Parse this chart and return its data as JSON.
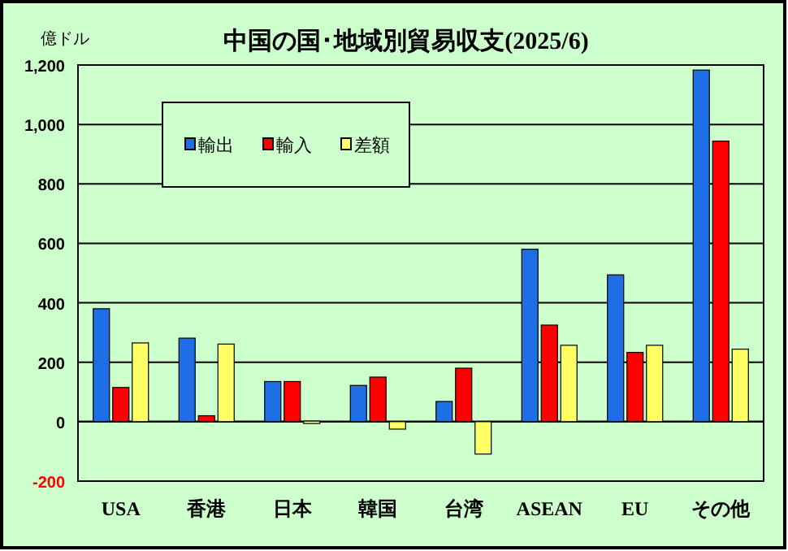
{
  "chart_data": {
    "type": "bar",
    "title": "中国の国･地域別貿易収支(2025/6)",
    "ylabel": "億ドル",
    "categories": [
      "USA",
      "香港",
      "日本",
      "韓国",
      "台湾",
      "ASEAN",
      "EU",
      "その他"
    ],
    "series": [
      {
        "name": "輸出",
        "color": "#1e6fe6",
        "values": [
          380,
          281,
          135,
          122,
          68,
          580,
          494,
          1183
        ]
      },
      {
        "name": "輸入",
        "color": "#ff0000",
        "values": [
          115,
          20,
          135,
          150,
          180,
          325,
          233,
          944
        ]
      },
      {
        "name": "差額",
        "color": "#ffff66",
        "values": [
          265,
          261,
          2,
          -25,
          -109,
          257,
          257,
          244
        ]
      }
    ],
    "ylim": [
      -200,
      1200
    ],
    "yticks": [
      -200,
      0,
      200,
      400,
      600,
      800,
      {
        "value": 1000,
        "label": "1,000"
      },
      {
        "value": 1200,
        "label": "1,200"
      }
    ],
    "grid": "y",
    "legend": "top left"
  }
}
